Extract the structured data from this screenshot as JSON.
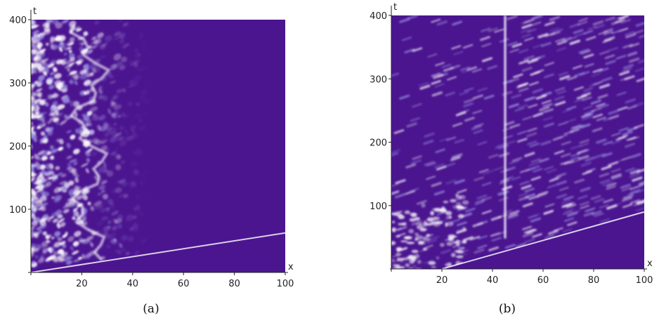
{
  "figure": {
    "captions": [
      "(a)",
      "(b)"
    ]
  },
  "chart_data": [
    {
      "type": "heatmap",
      "panel": "(a)",
      "xlabel": "x",
      "ylabel": "t",
      "xlim": [
        0,
        100
      ],
      "ylim": [
        0,
        400
      ],
      "x_ticks": [
        20,
        40,
        60,
        80,
        100
      ],
      "y_ticks": [
        100,
        200,
        300,
        400
      ],
      "colors": {
        "background": "#4b1590",
        "high": "#ffffff",
        "mid": "#9a8fe0"
      },
      "description_data": {
        "front_line": [
          [
            0,
            0
          ],
          [
            24,
            15
          ]
        ],
        "turbulent_region_x_extent": [
          0,
          25
        ],
        "diffuse_region_x_extent": [
          25,
          55
        ]
      }
    },
    {
      "type": "heatmap",
      "panel": "(b)",
      "xlabel": "x",
      "ylabel": "t",
      "xlim": [
        0,
        100
      ],
      "ylim": [
        0,
        400
      ],
      "x_ticks": [
        20,
        40,
        60,
        80,
        100
      ],
      "y_ticks": [
        100,
        200,
        300,
        400
      ],
      "colors": {
        "background": "#4b1590",
        "high": "#ffffff",
        "mid": "#9a8fe0"
      },
      "description_data": {
        "front_line": [
          [
            20,
            0
          ],
          [
            100,
            90
          ]
        ],
        "bright_vertical_line_x": 45,
        "turbulent_region_x_extent": [
          0,
          100
        ]
      }
    }
  ]
}
